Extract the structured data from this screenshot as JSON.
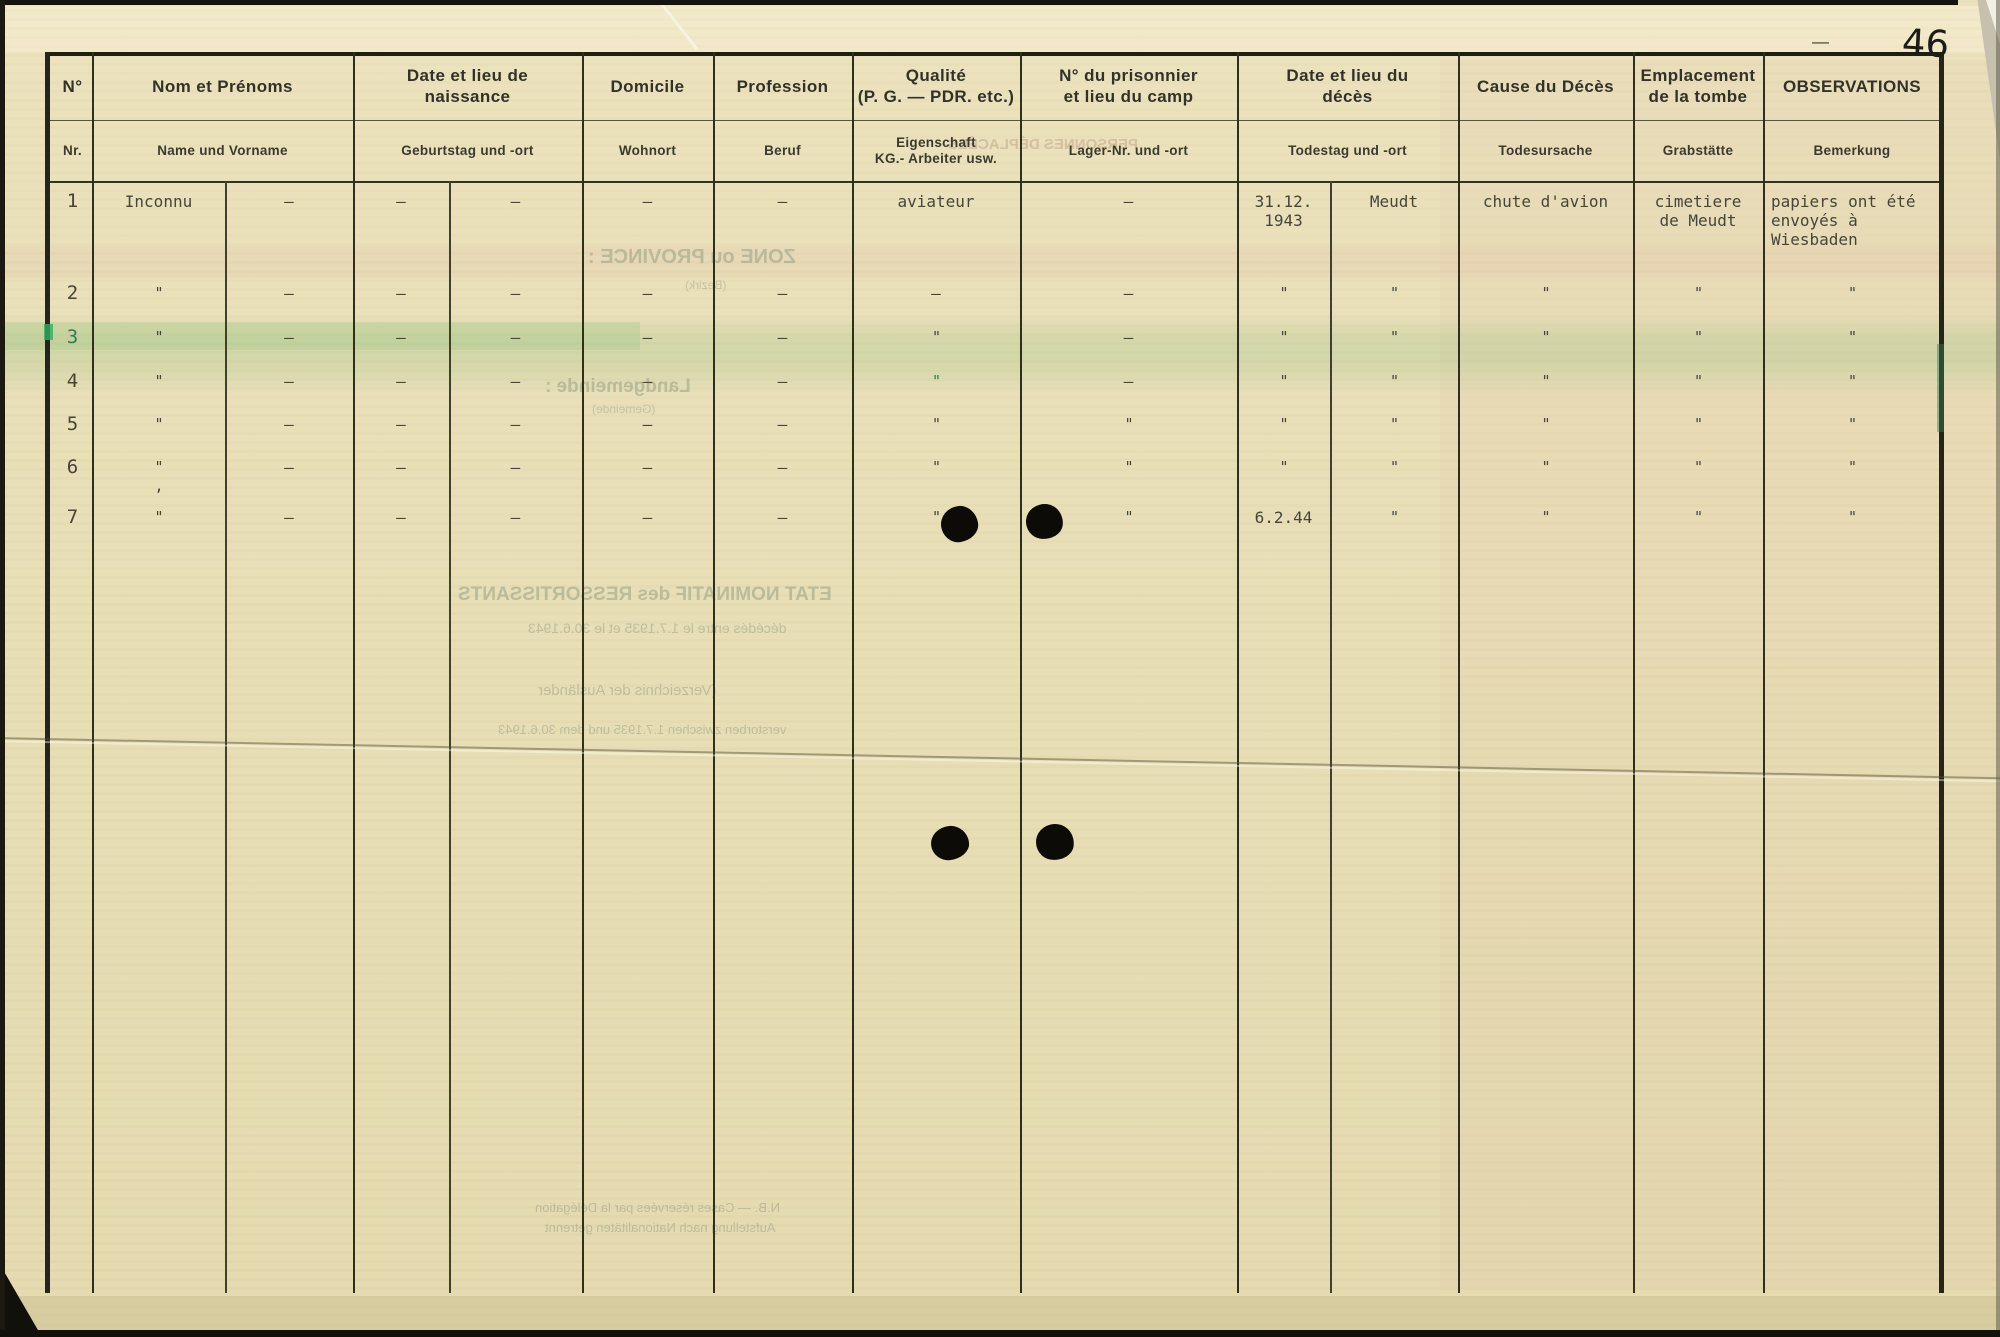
{
  "page": {
    "number": "46",
    "corner_mark": "—"
  },
  "table": {
    "columns": [
      {
        "id": "no",
        "fr": "N°",
        "de": "Nr."
      },
      {
        "id": "nom",
        "fr": "Nom et Prénoms",
        "de": "Name und Vorname"
      },
      {
        "id": "naissance",
        "fr": "Date et lieu de\nnaissance",
        "de": "Geburtstag und -ort"
      },
      {
        "id": "domicile",
        "fr": "Domicile",
        "de": "Wohnort"
      },
      {
        "id": "profession",
        "fr": "Profession",
        "de": "Beruf"
      },
      {
        "id": "qualite",
        "fr": "Qualité\n(P. G. — PDR. etc.)",
        "de": "Eigenschaft\nKG.- Arbeiter usw."
      },
      {
        "id": "prisonnier",
        "fr": "N° du prisonnier\net lieu du camp",
        "de": "Lager-Nr. und -ort"
      },
      {
        "id": "deces",
        "fr": "Date et lieu du\ndécès",
        "de": "Todestag und -ort"
      },
      {
        "id": "cause",
        "fr": "Cause du Décès",
        "de": "Todesursache"
      },
      {
        "id": "tombe",
        "fr": "Emplacement\nde la tombe",
        "de": "Grabstätte"
      },
      {
        "id": "observations",
        "fr": "OBSERVATIONS",
        "de": "Bemerkung"
      }
    ],
    "rows": [
      {
        "no": "1",
        "nom_l": "Inconnu",
        "nom_r": "–",
        "nais_l": "–",
        "nais_r": "–",
        "dom": "–",
        "prof": "–",
        "qual": "aviateur",
        "pris": "–",
        "dec_l": "31.12.\n1943",
        "dec_r": "Meudt",
        "cause": "chute d'avion",
        "tombe": "cimetiere\nde Meudt",
        "obs": "papiers ont été\nenvoyés à\nWiesbaden"
      },
      {
        "no": "2",
        "nom_l": "\"",
        "nom_r": "–",
        "nais_l": "–",
        "nais_r": "–",
        "dom": "–",
        "prof": "–",
        "qual": "–",
        "pris": "–",
        "dec_l": "\"",
        "dec_r": "\"",
        "cause": "\"",
        "tombe": "\"",
        "obs": "\""
      },
      {
        "no": "3",
        "nom_l": "\"",
        "nom_r": "–",
        "nais_l": "–",
        "nais_r": "–",
        "dom": "–",
        "prof": "–",
        "qual": "\"",
        "pris": "–",
        "dec_l": "\"",
        "dec_r": "\"",
        "cause": "\"",
        "tombe": "\"",
        "obs": "\""
      },
      {
        "no": "4",
        "nom_l": "\"",
        "nom_r": "–",
        "nais_l": "–",
        "nais_r": "–",
        "dom": "–",
        "prof": "–",
        "qual": "\"",
        "pris": "–",
        "dec_l": "\"",
        "dec_r": "\"",
        "cause": "\"",
        "tombe": "\"",
        "obs": "\""
      },
      {
        "no": "5",
        "nom_l": "\"",
        "nom_r": "–",
        "nais_l": "–",
        "nais_r": "–",
        "dom": "–",
        "prof": "–",
        "qual": "\"",
        "pris": "\"",
        "dec_l": "\"",
        "dec_r": "\"",
        "cause": "\"",
        "tombe": "\"",
        "obs": "\""
      },
      {
        "no": "6",
        "nom_l": "\"\n,",
        "nom_r": "–",
        "nais_l": "–",
        "nais_r": "–",
        "dom": "–",
        "prof": "–",
        "qual": "\"",
        "pris": "\"",
        "dec_l": "\"",
        "dec_r": "\"",
        "cause": "\"",
        "tombe": "\"",
        "obs": "\""
      },
      {
        "no": "7",
        "nom_l": "\"",
        "nom_r": "–",
        "nais_l": "–",
        "nais_r": "–",
        "dom": "–",
        "prof": "–",
        "qual": "\"",
        "pris": "\"",
        "dec_l": "6.2.44",
        "dec_r": "\"",
        "cause": "\"",
        "tombe": "\"",
        "obs": "\""
      }
    ],
    "green_cells": [
      {
        "row": 2,
        "col": "no"
      },
      {
        "row": 3,
        "col": "qual"
      }
    ]
  },
  "bleed_through": {
    "items": [
      {
        "text": "ZONE ou PROVINCE :",
        "cls": ""
      },
      {
        "text": "(Bezirk)",
        "cls": "small"
      },
      {
        "text": "PERSONNES DÉPLACÉES",
        "cls": "pink"
      },
      {
        "text": "Landgemeinde :",
        "cls": ""
      },
      {
        "text": "(Gemeinde)",
        "cls": "small"
      },
      {
        "text": "ETAT NOMINATIF des RESSORTISSANTS",
        "cls": ""
      },
      {
        "text": "décédés entre le 1.7.1935 et le 30.6.1943",
        "cls": "mid"
      },
      {
        "text": "(Verzeichnis der Ausländer",
        "cls": "mid"
      },
      {
        "text": "verstorben zwischen 1.7.1935 und dem 30.6.1943",
        "cls": "mid"
      },
      {
        "text": "N.B. — Cases réservées par la Délégation",
        "cls": "mid"
      },
      {
        "text": "Aufstellung nach Nationalitäten getrennt",
        "cls": "mid"
      }
    ]
  },
  "colors": {
    "paper": "#e8deb6",
    "line": "#2f2e20",
    "typewriter": "#45453a",
    "green_stain": "#2e7d4c",
    "ink_blot": "#0c0b08"
  }
}
